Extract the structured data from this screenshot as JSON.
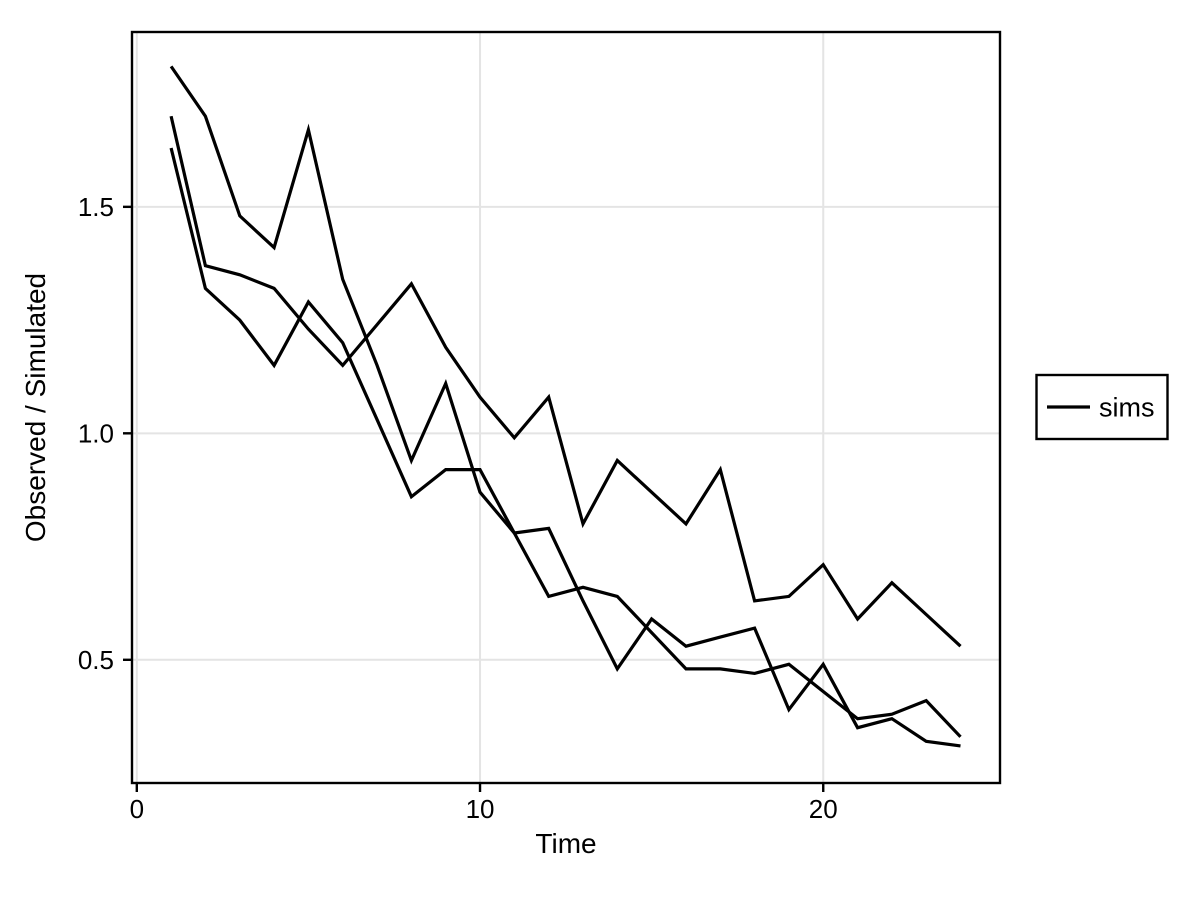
{
  "chart_data": {
    "type": "line",
    "title": "",
    "xlabel": "Time",
    "ylabel": "Observed / Simulated",
    "legend": {
      "entries": [
        "sims"
      ],
      "position": "right-outside"
    },
    "colors": {
      "line": "#000000",
      "grid": "#e4e4e4",
      "border": "#000000",
      "background": "#ffffff"
    },
    "grid": true,
    "xlim": [
      -0.14,
      25.15
    ],
    "ylim": [
      0.228,
      1.886
    ],
    "x_ticks": [
      0,
      10,
      20
    ],
    "y_ticks": [
      0.5,
      1.0,
      1.5
    ],
    "x_tick_labels": [
      "0",
      "10",
      "20"
    ],
    "y_tick_labels": [
      "0.5",
      "1.0",
      "1.5"
    ],
    "x": [
      1,
      2,
      3,
      4,
      5,
      6,
      7,
      8,
      9,
      10,
      11,
      12,
      13,
      14,
      15,
      16,
      17,
      18,
      19,
      20,
      21,
      22,
      23,
      24
    ],
    "series": [
      {
        "name": "sims",
        "values": [
          1.81,
          1.7,
          1.48,
          1.41,
          1.67,
          1.34,
          1.15,
          0.94,
          1.11,
          0.87,
          0.78,
          0.79,
          0.63,
          0.48,
          0.59,
          0.53,
          0.55,
          0.57,
          0.39,
          0.49,
          0.35,
          0.37,
          0.32,
          0.31
        ]
      },
      {
        "name": "sims",
        "values": [
          1.7,
          1.37,
          1.35,
          1.32,
          1.23,
          1.15,
          1.24,
          1.33,
          1.19,
          1.08,
          0.99,
          1.08,
          0.8,
          0.94,
          0.87,
          0.8,
          0.92,
          0.63,
          0.64,
          0.71,
          0.59,
          0.67,
          0.6,
          0.53
        ]
      },
      {
        "name": "sims",
        "values": [
          1.63,
          1.32,
          1.25,
          1.15,
          1.29,
          1.2,
          1.03,
          0.86,
          0.92,
          0.92,
          0.78,
          0.64,
          0.66,
          0.64,
          0.56,
          0.48,
          0.48,
          0.47,
          0.49,
          0.43,
          0.37,
          0.38,
          0.41,
          0.33
        ]
      }
    ]
  }
}
